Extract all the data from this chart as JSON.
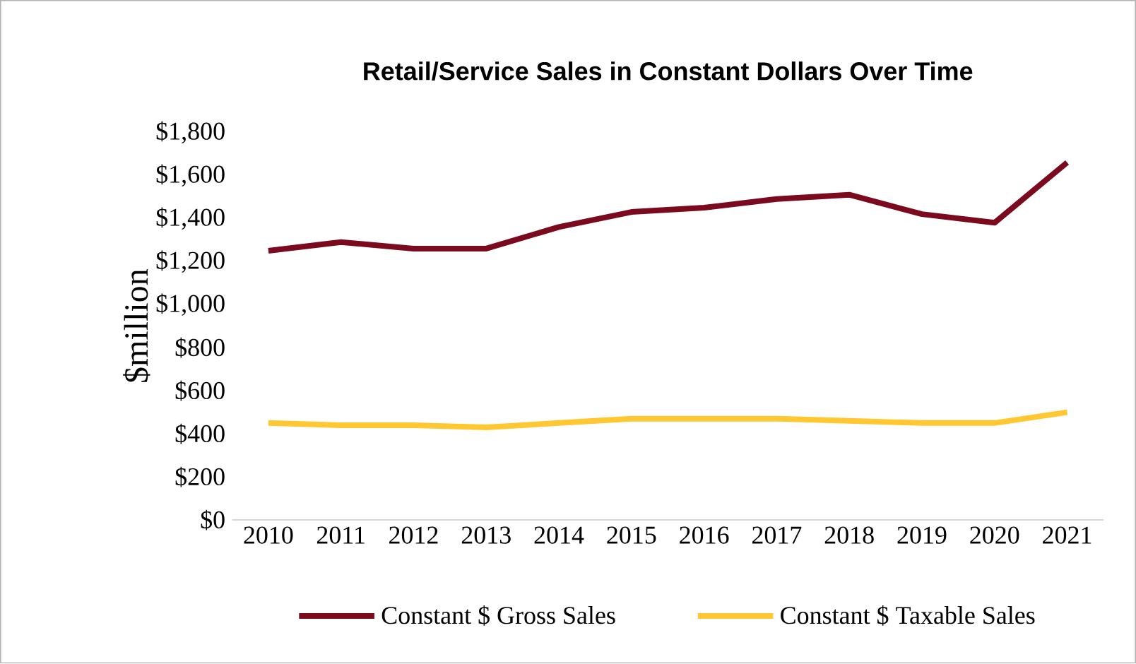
{
  "chart_data": {
    "type": "line",
    "title": "Retail/Service Sales in Constant Dollars Over Time",
    "ylabel": "$million",
    "categories": [
      "2010",
      "2011",
      "2012",
      "2013",
      "2014",
      "2015",
      "2016",
      "2017",
      "2018",
      "2019",
      "2020",
      "2021"
    ],
    "series": [
      {
        "name": "Constant $ Gross Sales",
        "color": "#7b0a1e",
        "values": [
          1250,
          1290,
          1260,
          1260,
          1360,
          1430,
          1450,
          1490,
          1510,
          1420,
          1380,
          1660
        ]
      },
      {
        "name": "Constant $ Taxable Sales",
        "color": "#ffc832",
        "values": [
          450,
          440,
          440,
          430,
          450,
          470,
          470,
          470,
          460,
          450,
          450,
          500
        ]
      }
    ],
    "ylim": [
      0,
      1800
    ],
    "yticks": [
      {
        "value": 0,
        "label": "$0"
      },
      {
        "value": 200,
        "label": "$200"
      },
      {
        "value": 400,
        "label": "$400"
      },
      {
        "value": 600,
        "label": "$600"
      },
      {
        "value": 800,
        "label": "$800"
      },
      {
        "value": 1000,
        "label": "$1,000"
      },
      {
        "value": 1200,
        "label": "$1,200"
      },
      {
        "value": 1400,
        "label": "$1,400"
      },
      {
        "value": 1600,
        "label": "$1,600"
      },
      {
        "value": 1800,
        "label": "$1,800"
      }
    ],
    "legend": "bottom",
    "marker": "none",
    "line_style": "solid",
    "grid": false
  }
}
